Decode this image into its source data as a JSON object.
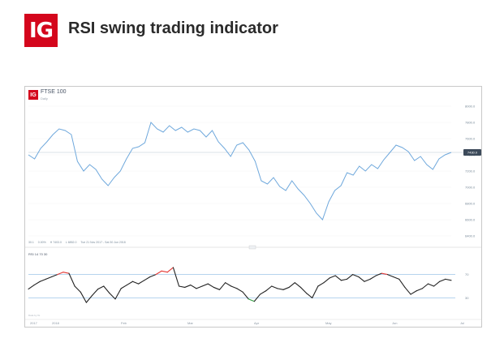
{
  "header": {
    "logo_text": "IG",
    "title": "RSI swing trading indicator"
  },
  "chart_header": {
    "logo_text": "IG",
    "instrument": "FTSE 100",
    "period": "Daily"
  },
  "readout": [
    "30.1",
    "0.00%",
    "H 7403.0",
    "L 6852.0",
    "Tue 21 Nov 2017 - Sat 30 Jun 2018"
  ],
  "rsi_header": "RSI 14 70 30",
  "credit": "Data by IG",
  "colors": {
    "brand_red": "#d4061c",
    "price_line": "#6fa8dc",
    "rsi_line": "#222222",
    "overbought": "#e53935",
    "oversold": "#2e9e3e",
    "band_line": "#9ec5e8"
  },
  "chart_data": {
    "type": "line",
    "title": "FTSE 100",
    "price": {
      "ylim": [
        6360,
        8140
      ],
      "ytick_labels": [
        "8000.0",
        "7800.0",
        "7600.0",
        "7400.0",
        "7200.0",
        "7000.0",
        "6800.0",
        "6600.0",
        "6400.0"
      ],
      "ytick_values": [
        8000,
        7800,
        7600,
        7400,
        7200,
        7000,
        6800,
        6600,
        6400
      ],
      "current_value_label": "7430.0",
      "current_value": 7430,
      "values": [
        7400,
        7350,
        7480,
        7560,
        7650,
        7720,
        7700,
        7650,
        7320,
        7200,
        7280,
        7220,
        7100,
        7020,
        7120,
        7200,
        7350,
        7480,
        7500,
        7550,
        7800,
        7720,
        7680,
        7760,
        7700,
        7740,
        7680,
        7720,
        7700,
        7620,
        7700,
        7560,
        7480,
        7380,
        7520,
        7550,
        7460,
        7320,
        7080,
        7040,
        7120,
        7010,
        6960,
        7080,
        6980,
        6900,
        6800,
        6680,
        6600,
        6820,
        6960,
        7020,
        7180,
        7150,
        7260,
        7200,
        7280,
        7230,
        7340,
        7430,
        7520,
        7490,
        7440,
        7330,
        7380,
        7280,
        7220,
        7350,
        7400,
        7430
      ]
    },
    "rsi": {
      "ylim": [
        0,
        100
      ],
      "levels": [
        70,
        30
      ],
      "level_labels": [
        "70",
        "30"
      ],
      "values": [
        45,
        52,
        58,
        62,
        66,
        70,
        74,
        72,
        50,
        40,
        22,
        34,
        45,
        50,
        38,
        28,
        46,
        52,
        58,
        54,
        60,
        66,
        70,
        76,
        74,
        82,
        50,
        48,
        52,
        46,
        50,
        54,
        48,
        44,
        56,
        50,
        46,
        40,
        28,
        24,
        36,
        42,
        50,
        46,
        44,
        48,
        56,
        48,
        38,
        30,
        50,
        56,
        64,
        68,
        60,
        62,
        70,
        66,
        58,
        62,
        68,
        72,
        70,
        66,
        62,
        48,
        36,
        42,
        46,
        54,
        50,
        58,
        62,
        60
      ]
    },
    "x_labels": [
      "2017",
      "2018",
      "Feb",
      "Mar",
      "Apr",
      "May",
      "Jun",
      "Jul"
    ]
  }
}
